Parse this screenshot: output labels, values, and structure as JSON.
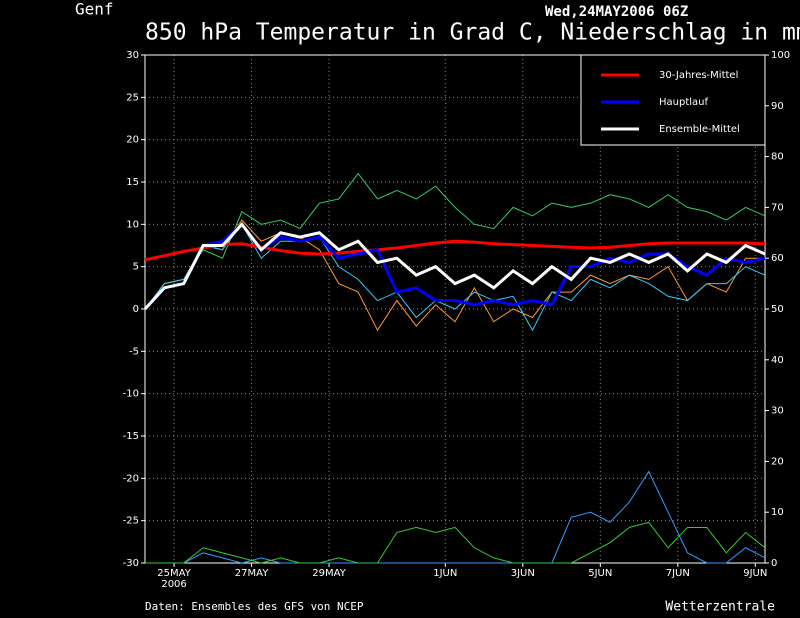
{
  "chart_data": {
    "type": "line",
    "station": "Genf",
    "title": "850 hPa Temperatur in Grad C, Niederschlag in mm",
    "run": "Wed,24MAY2006 06Z",
    "source": "Daten: Ensembles des GFS von NCEP",
    "credit": "Wetterzentrale",
    "xlim": [
      0,
      32
    ],
    "xticks": [
      {
        "value": 1.5,
        "label": "25MAY"
      },
      {
        "value": 5.5,
        "label": "27MAY"
      },
      {
        "value": 9.5,
        "label": "29MAY"
      },
      {
        "value": 15.5,
        "label": "1JUN"
      },
      {
        "value": 19.5,
        "label": "3JUN"
      },
      {
        "value": 23.5,
        "label": "5JUN"
      },
      {
        "value": 27.5,
        "label": "7JUN"
      },
      {
        "value": 31.5,
        "label": "9JUN"
      }
    ],
    "x_sublabel": "2006",
    "ylim": [
      -30,
      30
    ],
    "yticks": [
      -30,
      -25,
      -20,
      -15,
      -10,
      -5,
      0,
      5,
      10,
      15,
      20,
      25,
      30
    ],
    "y2lim": [
      0,
      100
    ],
    "y2ticks": [
      0,
      10,
      20,
      30,
      40,
      50,
      60,
      70,
      80,
      90,
      100
    ],
    "grid": true,
    "legend": "upper right",
    "members": [
      {
        "color": "#33cc66",
        "values": [
          0,
          3,
          3.5,
          7,
          6,
          11.5,
          10,
          10.5,
          9.5,
          12.5,
          13,
          16,
          13,
          14,
          13,
          14.5,
          12,
          10,
          9.5,
          12,
          11,
          12.5,
          12,
          12.5,
          13.5,
          13,
          12,
          13.5,
          12,
          11.5,
          10.5,
          12,
          11
        ]
      },
      {
        "color": "#ff9933",
        "values": [
          0,
          3,
          3.5,
          7.5,
          7,
          10.5,
          8,
          9,
          8.5,
          7,
          3,
          2,
          -2.5,
          1,
          -2,
          0.5,
          -1.5,
          2.5,
          -1.5,
          0,
          -1,
          2,
          2,
          4,
          3,
          4,
          3.5,
          5,
          1,
          3,
          2,
          6,
          6
        ]
      },
      {
        "color": "#33ccff",
        "values": [
          0,
          3,
          3.5,
          7.5,
          7,
          10,
          6,
          8,
          8,
          8.5,
          5,
          3.5,
          1,
          2,
          -1,
          1,
          0,
          2,
          1,
          1.5,
          -2.5,
          2,
          1,
          3.5,
          2.5,
          4,
          3,
          1.5,
          1,
          3,
          3,
          5,
          4
        ]
      },
      {
        "color": "#3399ff",
        "axis": "y2",
        "values": [
          0,
          0,
          0,
          2,
          1,
          0,
          1,
          0,
          0,
          0,
          0,
          0,
          0,
          0,
          0,
          0,
          0,
          0,
          0,
          0,
          0,
          0,
          9,
          10,
          8,
          12,
          18,
          10,
          2,
          0,
          0,
          3,
          1
        ]
      },
      {
        "color": "#33cc33",
        "axis": "y2",
        "values": [
          0,
          0,
          0,
          3,
          2,
          1,
          0,
          1,
          0,
          0,
          1,
          0,
          0,
          6,
          7,
          6,
          7,
          3,
          1,
          0,
          0,
          0,
          0,
          2,
          4,
          7,
          8,
          3,
          7,
          7,
          2,
          6,
          3
        ]
      }
    ],
    "series": [
      {
        "name": "30-Jahres-Mittel",
        "color": "#ff0000",
        "values": [
          5.8,
          6.3,
          6.8,
          7.2,
          7.6,
          7.7,
          7.3,
          6.9,
          6.6,
          6.5,
          6.6,
          6.8,
          7.0,
          7.2,
          7.5,
          7.8,
          8.0,
          7.9,
          7.7,
          7.6,
          7.5,
          7.4,
          7.3,
          7.2,
          7.3,
          7.5,
          7.7,
          7.8,
          7.8,
          7.8,
          7.8,
          7.8,
          7.7
        ]
      },
      {
        "name": "Hauptlauf",
        "color": "#0000ff",
        "values": [
          0,
          2.5,
          3,
          7.5,
          8,
          10,
          7,
          8.5,
          8,
          8.5,
          6,
          6.5,
          7,
          2,
          2.5,
          1,
          1,
          0.5,
          1,
          0.5,
          1,
          0.5,
          5,
          5,
          6,
          5.5,
          6.5,
          6.5,
          5,
          4,
          6,
          5.5,
          6
        ]
      },
      {
        "name": "Ensemble-Mittel",
        "color": "#ffffff",
        "values": [
          0,
          2.5,
          3,
          7.5,
          7.5,
          10,
          7,
          9,
          8.5,
          9,
          7,
          8,
          5.5,
          6,
          4,
          5,
          3,
          4,
          2.5,
          4.5,
          3,
          5,
          3.5,
          6,
          5.5,
          6.5,
          5.5,
          6.5,
          4.5,
          6.5,
          5.5,
          7.5,
          6.5
        ]
      }
    ]
  }
}
